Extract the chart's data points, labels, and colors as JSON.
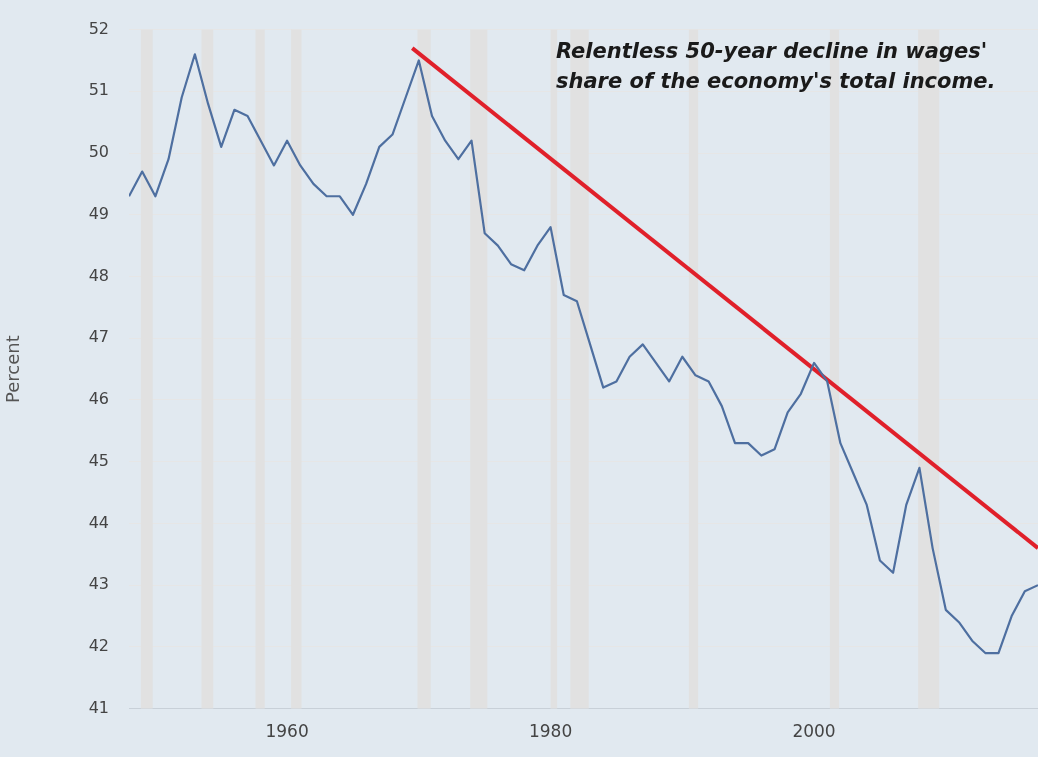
{
  "chart_data": {
    "type": "line",
    "ylabel": "Percent",
    "annotations": [
      "Relentless 50-year decline in wages' share of the economy's total income."
    ],
    "x": [
      1948,
      1949,
      1950,
      1951,
      1952,
      1953,
      1954,
      1955,
      1956,
      1957,
      1958,
      1959,
      1960,
      1961,
      1962,
      1963,
      1964,
      1965,
      1966,
      1967,
      1968,
      1969,
      1970,
      1971,
      1972,
      1973,
      1974,
      1975,
      1976,
      1977,
      1978,
      1979,
      1980,
      1981,
      1982,
      1983,
      1984,
      1985,
      1986,
      1987,
      1988,
      1989,
      1990,
      1991,
      1992,
      1993,
      1994,
      1995,
      1996,
      1997,
      1998,
      1999,
      2000,
      2001,
      2002,
      2003,
      2004,
      2005,
      2006,
      2007,
      2008,
      2009,
      2010,
      2011,
      2012,
      2013,
      2014,
      2015,
      2016,
      2017
    ],
    "series": [
      {
        "color": "#4e6fa0",
        "values": [
          49.3,
          49.7,
          49.3,
          49.9,
          50.9,
          51.6,
          50.8,
          50.1,
          50.7,
          50.6,
          50.2,
          49.8,
          50.2,
          49.8,
          49.5,
          49.3,
          49.3,
          49.0,
          49.5,
          50.1,
          50.3,
          50.9,
          51.5,
          50.6,
          50.2,
          49.9,
          50.2,
          48.7,
          48.5,
          48.2,
          48.1,
          48.5,
          48.8,
          47.7,
          47.6,
          46.9,
          46.2,
          46.3,
          46.7,
          46.9,
          46.6,
          46.3,
          46.7,
          46.4,
          46.3,
          45.9,
          45.3,
          45.3,
          45.1,
          45.2,
          45.8,
          46.1,
          46.6,
          46.3,
          45.3,
          44.8,
          44.3,
          43.4,
          43.2,
          44.3,
          44.9,
          43.6,
          42.6,
          42.4,
          42.1,
          41.9,
          41.9,
          42.5,
          42.9,
          43.0
        ]
      },
      {
        "type": "line",
        "color": "#e0202a",
        "x": [
          1969.5,
          2017
        ],
        "values": [
          51.7,
          43.6
        ]
      }
    ],
    "bands": [
      {
        "axis": "x",
        "from": 1948.9,
        "to": 1949.8,
        "color": "#e1e1e1"
      },
      {
        "axis": "x",
        "from": 1953.5,
        "to": 1954.4,
        "color": "#e1e1e1"
      },
      {
        "axis": "x",
        "from": 1957.6,
        "to": 1958.3,
        "color": "#e1e1e1"
      },
      {
        "axis": "x",
        "from": 1960.3,
        "to": 1961.1,
        "color": "#e1e1e1"
      },
      {
        "axis": "x",
        "from": 1969.9,
        "to": 1970.9,
        "color": "#e1e1e1"
      },
      {
        "axis": "x",
        "from": 1973.9,
        "to": 1975.2,
        "color": "#e1e1e1"
      },
      {
        "axis": "x",
        "from": 1980.0,
        "to": 1980.5,
        "color": "#e1e1e1"
      },
      {
        "axis": "x",
        "from": 1981.5,
        "to": 1982.9,
        "color": "#e1e1e1"
      },
      {
        "axis": "x",
        "from": 1990.5,
        "to": 1991.2,
        "color": "#e1e1e1"
      },
      {
        "axis": "x",
        "from": 2001.2,
        "to": 2001.9,
        "color": "#e1e1e1"
      },
      {
        "axis": "x",
        "from": 2007.9,
        "to": 2009.5,
        "color": "#e1e1e1"
      }
    ],
    "xlim": [
      1948,
      2017
    ],
    "xticks": [
      1960,
      1980,
      2000
    ],
    "ylim": [
      41,
      52
    ],
    "yticks": [
      41,
      42,
      43,
      44,
      45,
      46,
      47,
      48,
      49,
      50,
      51,
      52
    ],
    "grid": "y",
    "legend": false,
    "marker": "none",
    "line_style": "solid"
  }
}
